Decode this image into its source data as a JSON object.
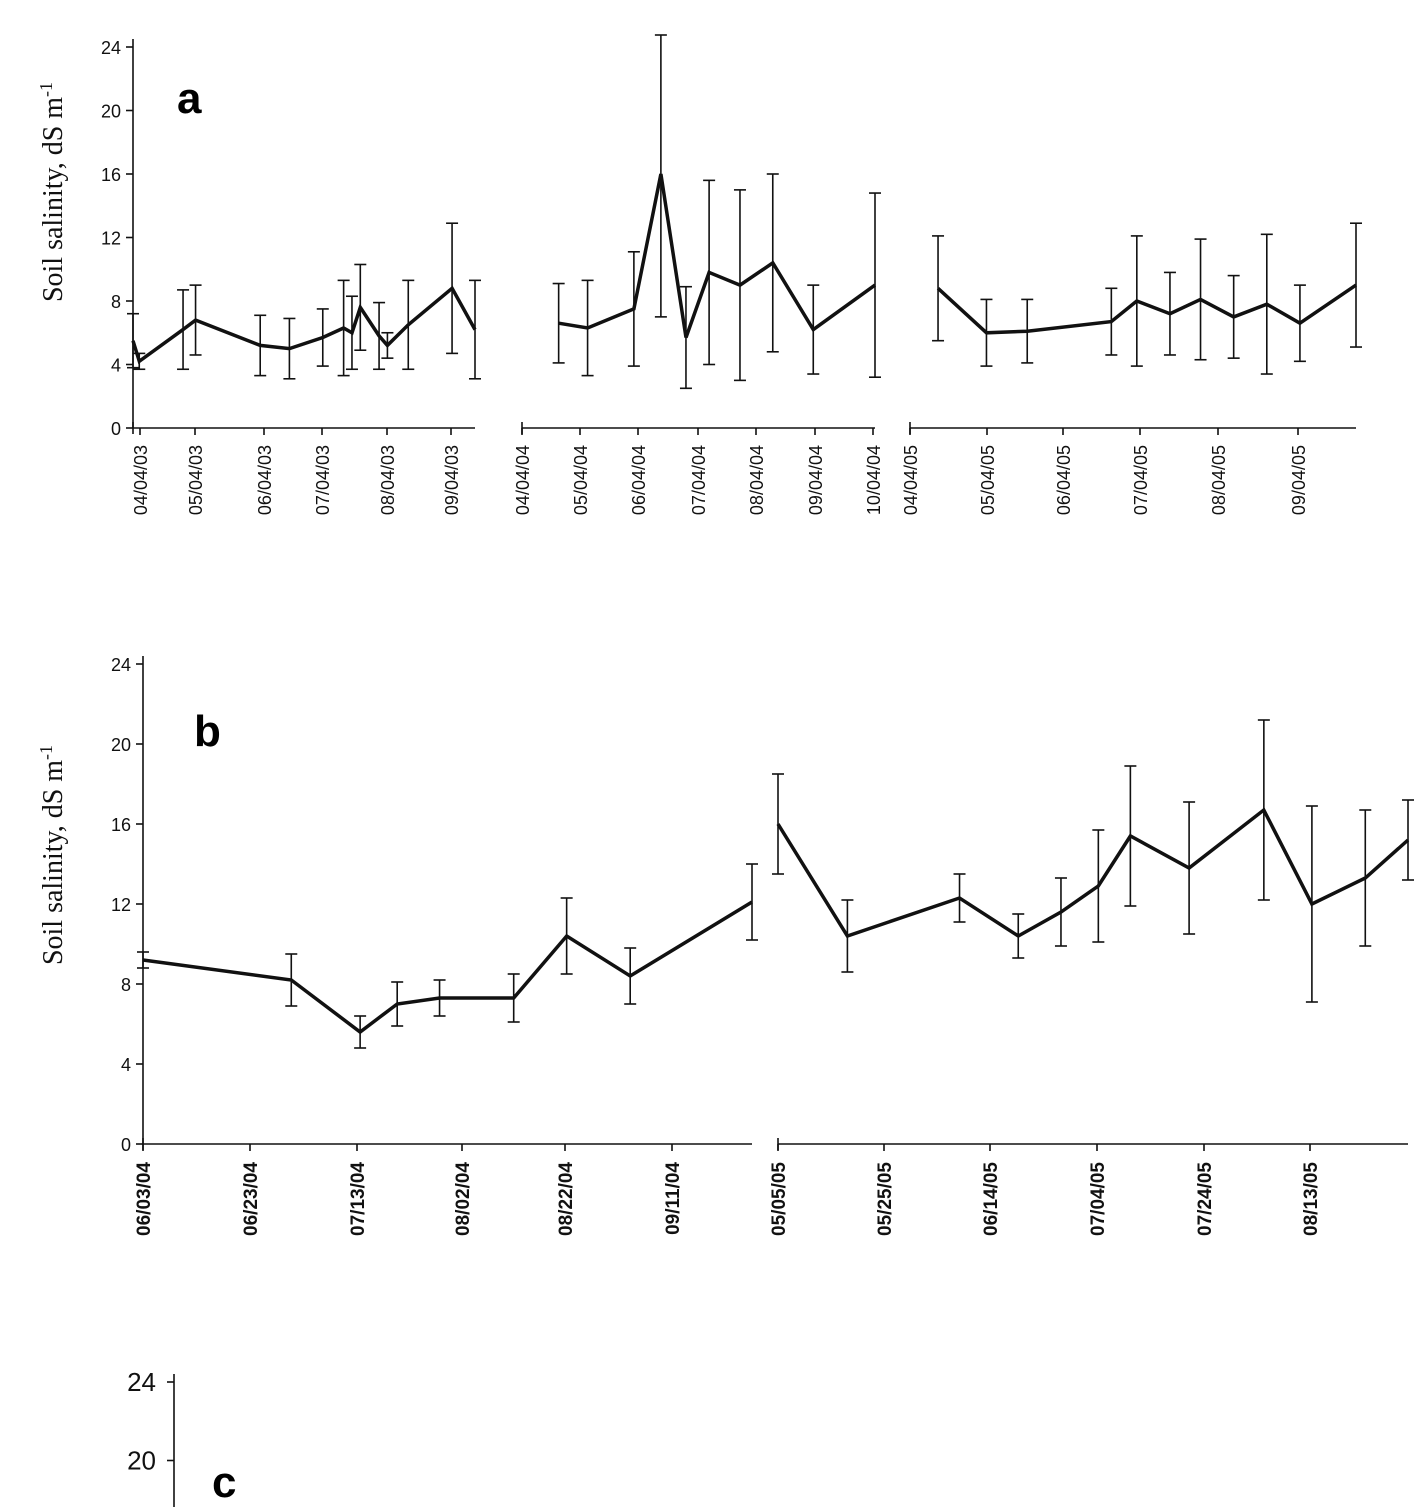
{
  "chart_data": [
    {
      "panel": "a",
      "type": "line",
      "ylabel": "Soil salinity, dS m",
      "ylabel_sup": "-1",
      "ylim": [
        0,
        24
      ],
      "yticks": [
        0,
        4,
        8,
        12,
        16,
        20,
        24
      ],
      "grid": false,
      "segments": [
        {
          "xticks": [
            "04/04/03",
            "05/04/03",
            "06/04/03",
            "07/04/03",
            "08/04/03",
            "09/04/03"
          ],
          "points": [
            {
              "x": "04/04/03",
              "y": 5.5,
              "err": 1.7
            },
            {
              "x": "04/07/03",
              "y": 4.2,
              "err": 0.5
            },
            {
              "x": "04/28/03",
              "y": 6.2,
              "err": 2.5
            },
            {
              "x": "05/04/03",
              "y": 6.8,
              "err": 2.2
            },
            {
              "x": "06/04/03",
              "y": 5.2,
              "err": 1.9
            },
            {
              "x": "06/18/03",
              "y": 5.0,
              "err": 1.9
            },
            {
              "x": "07/04/03",
              "y": 5.7,
              "err": 1.8
            },
            {
              "x": "07/14/03",
              "y": 6.3,
              "err": 3.0
            },
            {
              "x": "07/18/03",
              "y": 6.0,
              "err": 2.3
            },
            {
              "x": "07/22/03",
              "y": 7.6,
              "err": 2.7
            },
            {
              "x": "07/31/03",
              "y": 5.8,
              "err": 2.1
            },
            {
              "x": "08/04/03",
              "y": 5.2,
              "err": 0.8
            },
            {
              "x": "08/14/03",
              "y": 6.5,
              "err": 2.8
            },
            {
              "x": "09/04/03",
              "y": 8.8,
              "err": 4.1
            },
            {
              "x": "09/15/03",
              "y": 6.2,
              "err": 3.1
            }
          ]
        },
        {
          "xticks": [
            "04/04/04",
            "05/04/04",
            "06/04/04",
            "07/04/04",
            "08/04/04",
            "09/04/04",
            "10/04/04"
          ],
          "points": [
            {
              "x": "04/23/04",
              "y": 6.6,
              "err": 2.5
            },
            {
              "x": "05/08/04",
              "y": 6.3,
              "err": 3.0
            },
            {
              "x": "06/01/04",
              "y": 7.5,
              "err": 3.6
            },
            {
              "x": "06/15/04",
              "y": 16.0,
              "err": 9.0
            },
            {
              "x": "06/28/04",
              "y": 5.7,
              "err": 3.2
            },
            {
              "x": "07/10/04",
              "y": 9.8,
              "err": 5.8
            },
            {
              "x": "07/26/04",
              "y": 9.0,
              "err": 6.0
            },
            {
              "x": "08/12/04",
              "y": 10.4,
              "err": 5.6
            },
            {
              "x": "09/02/04",
              "y": 6.2,
              "err": 2.8
            },
            {
              "x": "10/04/04",
              "y": 9.0,
              "err": 5.8
            }
          ]
        },
        {
          "xticks": [
            "04/04/05",
            "05/04/05",
            "06/04/05",
            "07/04/05",
            "08/04/05",
            "09/04/05"
          ],
          "points": [
            {
              "x": "04/15/05",
              "y": 8.8,
              "err": 3.3
            },
            {
              "x": "05/04/05",
              "y": 6.0,
              "err": 2.1
            },
            {
              "x": "05/20/05",
              "y": 6.1,
              "err": 2.0
            },
            {
              "x": "06/22/05",
              "y": 6.7,
              "err": 2.1
            },
            {
              "x": "07/02/05",
              "y": 8.0,
              "err": 4.1
            },
            {
              "x": "07/15/05",
              "y": 7.2,
              "err": 2.6
            },
            {
              "x": "07/27/05",
              "y": 8.1,
              "err": 3.8
            },
            {
              "x": "08/09/05",
              "y": 7.0,
              "err": 2.6
            },
            {
              "x": "08/22/05",
              "y": 7.8,
              "err": 4.4
            },
            {
              "x": "09/04/05",
              "y": 6.6,
              "err": 2.4
            },
            {
              "x": "09/26/05",
              "y": 9.0,
              "err": 3.9
            }
          ]
        }
      ]
    },
    {
      "panel": "b",
      "type": "line",
      "ylabel": "Soil salinity, dS m",
      "ylabel_sup": "-1",
      "ylim": [
        0,
        24
      ],
      "yticks": [
        0,
        4,
        8,
        12,
        16,
        20,
        24
      ],
      "grid": false,
      "segments": [
        {
          "xticks": [
            "06/03/04",
            "06/23/04",
            "07/13/04",
            "08/02/04",
            "08/22/04",
            "09/11/04"
          ],
          "points": [
            {
              "x": "06/03/04",
              "y": 9.2,
              "err": 0.4
            },
            {
              "x": "07/01/04",
              "y": 8.2,
              "err": 1.3
            },
            {
              "x": "07/14/04",
              "y": 5.6,
              "err": 0.8
            },
            {
              "x": "07/21/04",
              "y": 7.0,
              "err": 1.1
            },
            {
              "x": "07/29/04",
              "y": 7.3,
              "err": 0.9
            },
            {
              "x": "08/12/04",
              "y": 7.3,
              "err": 1.2
            },
            {
              "x": "08/22/04",
              "y": 10.4,
              "err": 1.9
            },
            {
              "x": "09/03/04",
              "y": 8.4,
              "err": 1.4
            },
            {
              "x": "09/26/04",
              "y": 12.1,
              "err": 1.9
            }
          ]
        },
        {
          "xticks": [
            "05/05/05",
            "05/25/05",
            "06/14/05",
            "07/04/05",
            "07/24/05",
            "08/13/05"
          ],
          "points": [
            {
              "x": "05/05/05",
              "y": 16.0,
              "err": 2.5
            },
            {
              "x": "05/18/05",
              "y": 10.4,
              "err": 1.8
            },
            {
              "x": "06/08/05",
              "y": 12.3,
              "err": 1.2
            },
            {
              "x": "06/19/05",
              "y": 10.4,
              "err": 1.1
            },
            {
              "x": "06/27/05",
              "y": 11.6,
              "err": 1.7
            },
            {
              "x": "07/04/05",
              "y": 12.9,
              "err": 2.8
            },
            {
              "x": "07/10/05",
              "y": 15.4,
              "err": 3.5
            },
            {
              "x": "07/21/05",
              "y": 13.8,
              "err": 3.3
            },
            {
              "x": "08/04/05",
              "y": 16.7,
              "err": 4.5
            },
            {
              "x": "08/13/05",
              "y": 12.0,
              "err": 4.9
            },
            {
              "x": "08/23/05",
              "y": 13.3,
              "err": 3.4
            },
            {
              "x": "08/31/05",
              "y": 15.2,
              "err": 2.0
            }
          ]
        }
      ]
    },
    {
      "panel": "c",
      "type": "line",
      "ylim": [
        0,
        24
      ],
      "yticks": [
        20,
        24
      ],
      "grid": false,
      "segments": []
    }
  ]
}
